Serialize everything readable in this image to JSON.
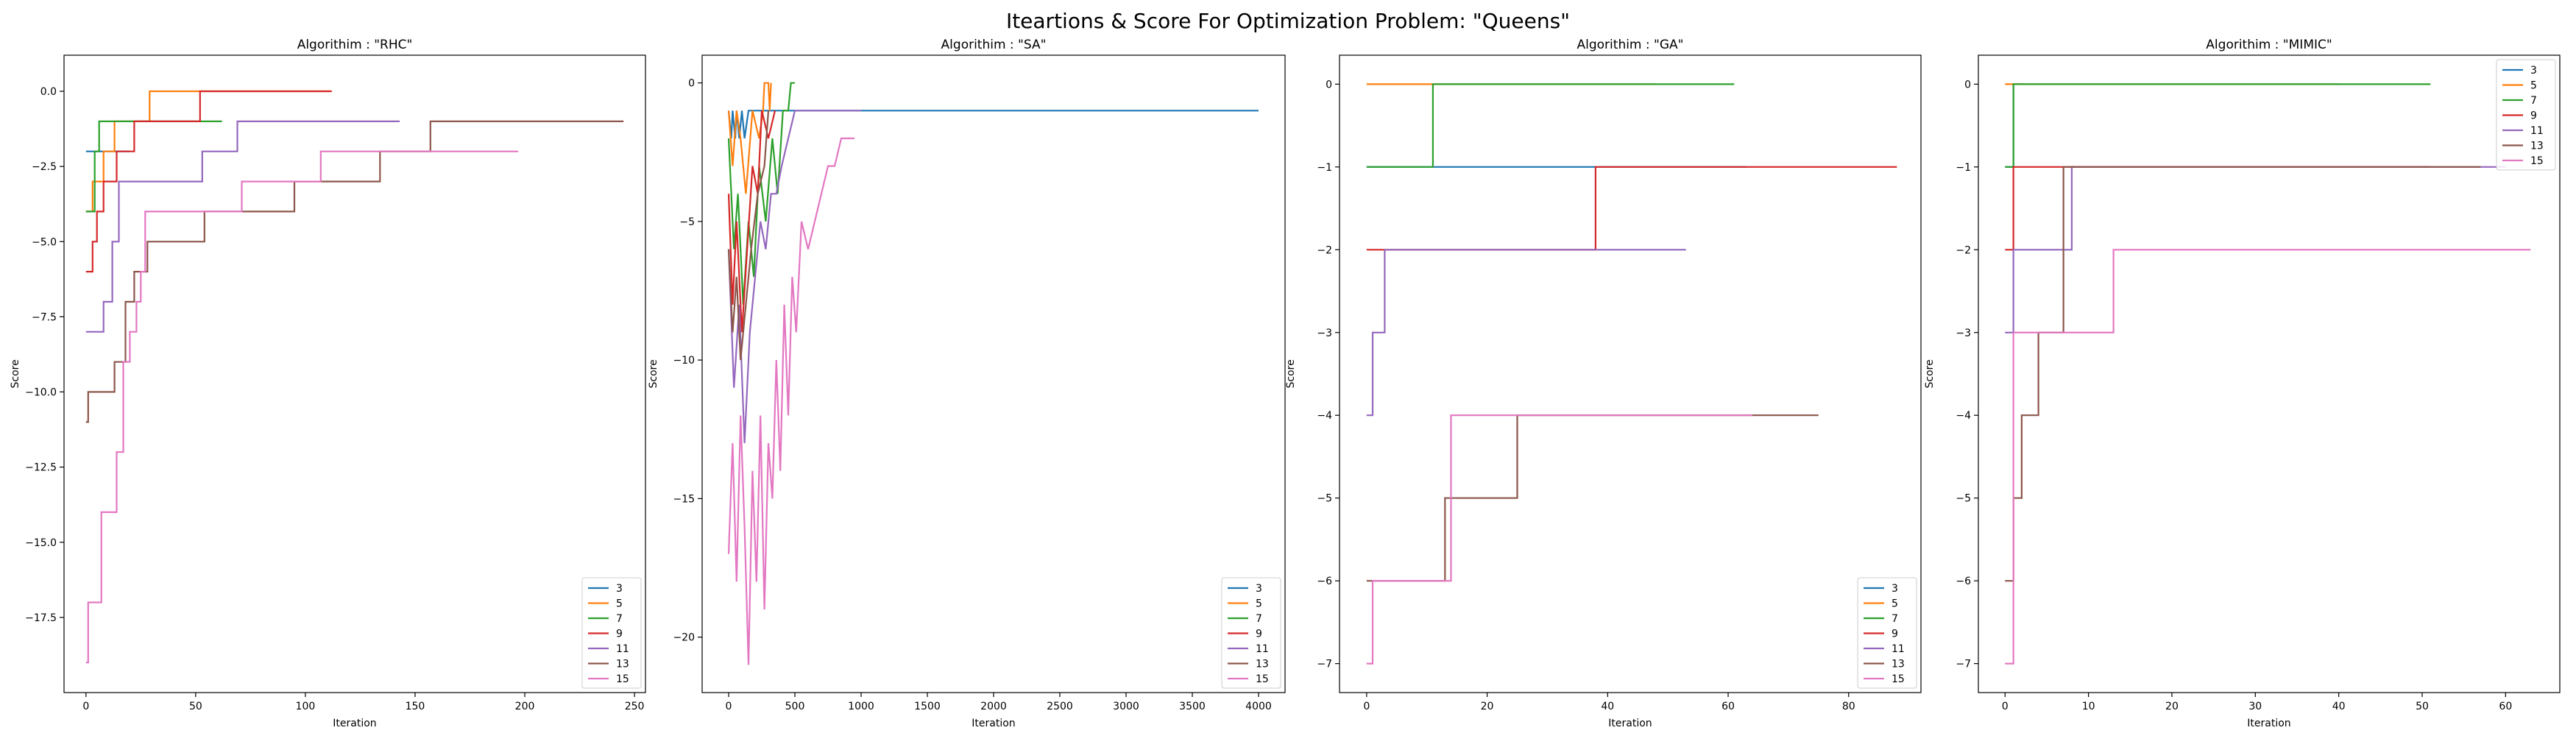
{
  "suptitle": "Iteartions & Score For Optimization Problem: \"Queens\"",
  "series_names": [
    "3",
    "5",
    "7",
    "9",
    "11",
    "13",
    "15"
  ],
  "series_colors": [
    "#1f77b4",
    "#ff7f0e",
    "#2ca02c",
    "#d62728",
    "#9467bd",
    "#8c564b",
    "#e377c2"
  ],
  "chart_data": [
    {
      "type": "line",
      "title": "Algorithim : \"RHC\"",
      "xlabel": "Iteration",
      "ylabel": "Score",
      "xlim": [
        -10,
        255
      ],
      "ylim": [
        -20.0,
        1.2
      ],
      "xticks": [
        0,
        50,
        100,
        150,
        200,
        250
      ],
      "xtick_labels": [
        "0",
        "50",
        "100",
        "150",
        "200",
        "250"
      ],
      "yticks": [
        -17.5,
        -15.0,
        -12.5,
        -10.0,
        -7.5,
        -5.0,
        -2.5,
        0.0
      ],
      "ytick_labels": [
        "−17.5",
        "−15.0",
        "−12.5",
        "−10.0",
        "−7.5",
        "−5.0",
        "−2.5",
        "0.0"
      ],
      "legend": "lower-right",
      "series": [
        {
          "name": "3",
          "x": [
            0,
            20
          ],
          "y": [
            -2,
            -2
          ]
        },
        {
          "name": "5",
          "x": [
            0,
            3,
            3,
            8,
            8,
            13,
            13,
            29,
            29,
            112
          ],
          "y": [
            -4,
            -4,
            -3,
            -3,
            -2,
            -2,
            -1,
            -1,
            0,
            0
          ]
        },
        {
          "name": "7",
          "x": [
            0,
            4,
            4,
            6,
            6,
            62
          ],
          "y": [
            -4,
            -4,
            -2,
            -2,
            -1,
            -1
          ]
        },
        {
          "name": "9",
          "x": [
            0,
            3,
            3,
            5,
            5,
            8,
            8,
            14,
            14,
            22,
            22,
            52,
            52,
            62,
            62,
            112
          ],
          "y": [
            -6,
            -6,
            -5,
            -5,
            -4,
            -4,
            -3,
            -3,
            -2,
            -2,
            -1,
            -1,
            0,
            0,
            0,
            0
          ]
        },
        {
          "name": "11",
          "x": [
            0,
            8,
            8,
            12,
            12,
            15,
            15,
            30,
            30,
            53,
            53,
            69,
            69,
            93,
            93,
            143
          ],
          "y": [
            -8,
            -8,
            -7,
            -7,
            -5,
            -5,
            -3,
            -3,
            -3,
            -3,
            -2,
            -2,
            -1,
            -1,
            -1,
            -1
          ]
        },
        {
          "name": "13",
          "x": [
            0,
            1,
            1,
            13,
            13,
            18,
            18,
            22,
            22,
            28,
            28,
            54,
            54,
            95,
            95,
            109,
            109,
            134,
            134,
            157,
            157,
            194,
            194,
            245
          ],
          "y": [
            -11,
            -11,
            -10,
            -10,
            -9,
            -9,
            -7,
            -7,
            -6,
            -6,
            -5,
            -5,
            -4,
            -4,
            -3,
            -3,
            -3,
            -3,
            -2,
            -2,
            -1,
            -1,
            -1,
            -1
          ]
        },
        {
          "name": "15",
          "x": [
            0,
            1,
            1,
            7,
            7,
            14,
            14,
            17,
            17,
            20,
            20,
            23,
            23,
            25,
            25,
            27,
            27,
            71,
            71,
            107,
            107,
            145,
            145,
            197
          ],
          "y": [
            -19,
            -19,
            -17,
            -17,
            -14,
            -14,
            -12,
            -12,
            -9,
            -9,
            -8,
            -8,
            -7,
            -7,
            -6,
            -6,
            -4,
            -4,
            -3,
            -3,
            -2,
            -2,
            -2,
            -2
          ]
        }
      ]
    },
    {
      "type": "line",
      "title": "Algorithim : \"SA\"",
      "xlabel": "Iteration",
      "ylabel": "Score",
      "xlim": [
        -200,
        4200
      ],
      "ylim": [
        -22.0,
        1.0
      ],
      "xticks": [
        0,
        500,
        1000,
        1500,
        2000,
        2500,
        3000,
        3500,
        4000
      ],
      "xtick_labels": [
        "0",
        "500",
        "1000",
        "1500",
        "2000",
        "2500",
        "3000",
        "3500",
        "4000"
      ],
      "yticks": [
        -20,
        -15,
        -10,
        -5,
        0
      ],
      "ytick_labels": [
        "−20",
        "−15",
        "−10",
        "−5",
        "0"
      ],
      "legend": "lower-right",
      "series": [
        {
          "name": "3",
          "x": [
            0,
            20,
            30,
            50,
            60,
            80,
            100,
            120,
            150,
            4000
          ],
          "y": [
            -1,
            -2,
            -1,
            -2,
            -1,
            -2,
            -1,
            -2,
            -1,
            -1
          ]
        },
        {
          "name": "5",
          "x": [
            0,
            30,
            60,
            90,
            130,
            180,
            230,
            260,
            270,
            300,
            310,
            320
          ],
          "y": [
            -1,
            -3,
            -1,
            -2,
            -4,
            -1,
            -2,
            -1,
            0,
            0,
            -1,
            0
          ]
        },
        {
          "name": "7",
          "x": [
            0,
            40,
            70,
            110,
            150,
            190,
            230,
            280,
            330,
            370,
            410,
            450,
            470,
            500
          ],
          "y": [
            -2,
            -6,
            -4,
            -8,
            -5,
            -7,
            -3,
            -5,
            -2,
            -4,
            -1,
            -1,
            0,
            0
          ]
        },
        {
          "name": "9",
          "x": [
            0,
            30,
            60,
            100,
            140,
            180,
            220,
            250,
            300,
            350
          ],
          "y": [
            -4,
            -8,
            -5,
            -9,
            -6,
            -3,
            -4,
            -1,
            -2,
            -1
          ]
        },
        {
          "name": "11",
          "x": [
            0,
            40,
            80,
            120,
            160,
            200,
            240,
            280,
            320,
            360,
            400,
            450,
            500,
            550,
            1000
          ],
          "y": [
            -6,
            -11,
            -8,
            -13,
            -9,
            -7,
            -5,
            -6,
            -4,
            -4,
            -3,
            -2,
            -1,
            -1,
            -1
          ]
        },
        {
          "name": "13",
          "x": [
            0,
            30,
            60,
            90,
            130,
            170,
            220,
            270,
            300
          ],
          "y": [
            -6,
            -9,
            -7,
            -10,
            -8,
            -6,
            -4,
            -3,
            -1
          ]
        },
        {
          "name": "15",
          "x": [
            0,
            30,
            60,
            90,
            120,
            150,
            180,
            210,
            240,
            270,
            300,
            330,
            360,
            390,
            420,
            450,
            480,
            510,
            550,
            600,
            650,
            700,
            750,
            800,
            850,
            900,
            950
          ],
          "y": [
            -17,
            -13,
            -18,
            -12,
            -16,
            -21,
            -14,
            -18,
            -12,
            -19,
            -13,
            -15,
            -10,
            -14,
            -8,
            -12,
            -7,
            -9,
            -5,
            -6,
            -5,
            -4,
            -3,
            -3,
            -2,
            -2,
            -2
          ]
        }
      ]
    },
    {
      "type": "line",
      "title": "Algorithim : \"GA\"",
      "xlabel": "Iteration",
      "ylabel": "Score",
      "xlim": [
        -4.5,
        92
      ],
      "ylim": [
        -7.35,
        0.35
      ],
      "xticks": [
        0,
        20,
        40,
        60,
        80
      ],
      "xtick_labels": [
        "0",
        "20",
        "40",
        "60",
        "80"
      ],
      "yticks": [
        -7,
        -6,
        -5,
        -4,
        -3,
        -2,
        -1,
        0
      ],
      "ytick_labels": [
        "−7",
        "−6",
        "−5",
        "−4",
        "−3",
        "−2",
        "−1",
        "0"
      ],
      "legend": "lower-right",
      "series": [
        {
          "name": "3",
          "x": [
            0,
            63
          ],
          "y": [
            -1,
            -1
          ]
        },
        {
          "name": "5",
          "x": [
            0,
            48
          ],
          "y": [
            0,
            0
          ]
        },
        {
          "name": "7",
          "x": [
            0,
            10,
            10,
            11,
            11,
            61
          ],
          "y": [
            -1,
            -1,
            -1,
            -1,
            0,
            0
          ]
        },
        {
          "name": "9",
          "x": [
            0,
            37,
            37,
            38,
            38,
            88
          ],
          "y": [
            -2,
            -2,
            -2,
            -2,
            -1,
            -1
          ]
        },
        {
          "name": "11",
          "x": [
            0,
            1,
            1,
            3,
            3,
            53
          ],
          "y": [
            -4,
            -4,
            -3,
            -3,
            -2,
            -2
          ]
        },
        {
          "name": "13",
          "x": [
            0,
            11,
            11,
            13,
            13,
            24,
            24,
            25,
            25,
            75
          ],
          "y": [
            -6,
            -6,
            -6,
            -6,
            -5,
            -5,
            -5,
            -5,
            -4,
            -4
          ]
        },
        {
          "name": "15",
          "x": [
            0,
            1,
            1,
            3,
            3,
            14,
            14,
            64
          ],
          "y": [
            -7,
            -7,
            -6,
            -6,
            -6,
            -6,
            -4,
            -4
          ]
        }
      ]
    },
    {
      "type": "line",
      "title": "Algorithim : \"MIMIC\"",
      "xlabel": "Iteration",
      "ylabel": "Score",
      "xlim": [
        -3.2,
        66.5
      ],
      "ylim": [
        -7.35,
        0.35
      ],
      "xticks": [
        0,
        10,
        20,
        30,
        40,
        50,
        60
      ],
      "xtick_labels": [
        "0",
        "10",
        "20",
        "30",
        "40",
        "50",
        "60"
      ],
      "yticks": [
        -7,
        -6,
        -5,
        -4,
        -3,
        -2,
        -1,
        0
      ],
      "ytick_labels": [
        "−7",
        "−6",
        "−5",
        "−4",
        "−3",
        "−2",
        "−1",
        "0"
      ],
      "legend": "upper-right",
      "series": [
        {
          "name": "3",
          "x": [
            0,
            1,
            1,
            2
          ],
          "y": [
            -1,
            -1,
            0,
            0
          ]
        },
        {
          "name": "5",
          "x": [
            0,
            40
          ],
          "y": [
            0,
            0
          ]
        },
        {
          "name": "7",
          "x": [
            0,
            1,
            1,
            51
          ],
          "y": [
            -1,
            -1,
            0,
            0
          ]
        },
        {
          "name": "9",
          "x": [
            0,
            1,
            1,
            51
          ],
          "y": [
            -2,
            -2,
            -1,
            -1
          ]
        },
        {
          "name": "11",
          "x": [
            0,
            1,
            1,
            8,
            8,
            10,
            10,
            60
          ],
          "y": [
            -3,
            -3,
            -2,
            -2,
            -1,
            -1,
            -1,
            -1
          ]
        },
        {
          "name": "13",
          "x": [
            0,
            1,
            1,
            2,
            2,
            4,
            4,
            7,
            7,
            57
          ],
          "y": [
            -6,
            -6,
            -5,
            -5,
            -4,
            -4,
            -3,
            -3,
            -1,
            -1
          ]
        },
        {
          "name": "15",
          "x": [
            0,
            1,
            1,
            3,
            3,
            13,
            13,
            63
          ],
          "y": [
            -7,
            -7,
            -3,
            -3,
            -3,
            -3,
            -2,
            -2
          ]
        }
      ]
    }
  ]
}
